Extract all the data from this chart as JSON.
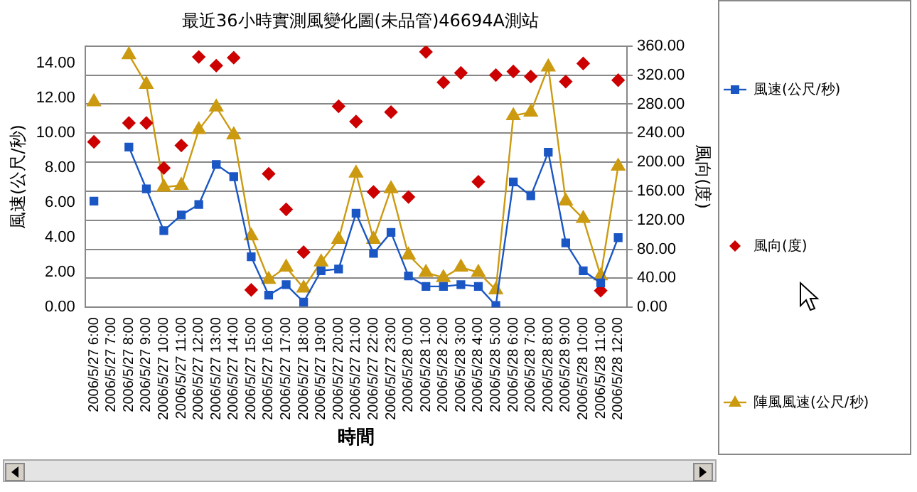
{
  "chart_data": {
    "type": "line",
    "title": "最近36小時實測風變化圖(未品管)46694A測站",
    "xlabel": "時間",
    "ylabel": "風速(公尺/秒)",
    "y2label": "風向(度)",
    "categories": [
      "2006/5/27 6:00",
      "2006/5/27 7:00",
      "2006/5/27 8:00",
      "2006/5/27 9:00",
      "2006/5/27 10:00",
      "2006/5/27 11:00",
      "2006/5/27 12:00",
      "2006/5/27 13:00",
      "2006/5/27 14:00",
      "2006/5/27 15:00",
      "2006/5/27 16:00",
      "2006/5/27 17:00",
      "2006/5/27 18:00",
      "2006/5/27 19:00",
      "2006/5/27 20:00",
      "2006/5/27 21:00",
      "2006/5/27 22:00",
      "2006/5/27 23:00",
      "2006/5/28 0:00",
      "2006/5/28 1:00",
      "2006/5/28 2:00",
      "2006/5/28 3:00",
      "2006/5/28 4:00",
      "2006/5/28 5:00",
      "2006/5/28 6:00",
      "2006/5/28 7:00",
      "2006/5/28 8:00",
      "2006/5/28 9:00",
      "2006/5/28 10:00",
      "2006/5/28 11:00",
      "2006/5/28 12:00"
    ],
    "series": [
      {
        "name": "風速(公尺/秒)",
        "type": "line",
        "marker": "square",
        "color": "#1a56c4",
        "values": [
          6.1,
          null,
          9.2,
          6.8,
          4.4,
          5.3,
          5.9,
          8.2,
          7.5,
          2.9,
          0.7,
          1.3,
          0.3,
          2.1,
          2.2,
          5.4,
          3.1,
          4.3,
          1.8,
          1.2,
          1.2,
          1.3,
          1.2,
          0.1,
          7.2,
          6.4,
          8.9,
          3.7,
          2.1,
          1.4,
          4.0
        ]
      },
      {
        "name": "風向(度)",
        "type": "scatter",
        "marker": "diamond",
        "axis": "y2",
        "color": "#cc0000",
        "values": [
          228,
          null,
          254,
          254,
          192,
          223,
          345,
          333,
          344,
          24,
          184,
          135,
          76,
          null,
          277,
          256,
          159,
          269,
          152,
          352,
          310,
          323,
          173,
          320,
          325,
          318,
          null,
          311,
          336,
          23,
          313
        ]
      },
      {
        "name": "陣風風速(公尺/秒)",
        "type": "line",
        "marker": "triangle",
        "color": "#cc9a10",
        "values": [
          11.8,
          null,
          14.5,
          12.8,
          6.9,
          7.0,
          10.2,
          11.5,
          9.9,
          4.1,
          1.6,
          2.3,
          1.1,
          2.6,
          3.9,
          7.7,
          3.9,
          6.8,
          3.0,
          2.0,
          1.7,
          2.3,
          2.0,
          1.0,
          11.0,
          11.2,
          13.8,
          6.1,
          5.1,
          1.8,
          8.1
        ]
      }
    ],
    "ylim": [
      0,
      15
    ],
    "yticks": [
      {
        "value": 0,
        "label": "0.00"
      },
      {
        "value": 2,
        "label": "2.00"
      },
      {
        "value": 4,
        "label": "4.00"
      },
      {
        "value": 6,
        "label": "6.00"
      },
      {
        "value": 8,
        "label": "8.00"
      },
      {
        "value": 10,
        "label": "10.00"
      },
      {
        "value": 12,
        "label": "12.00"
      },
      {
        "value": 14,
        "label": "14.00"
      }
    ],
    "y2lim": [
      0,
      360
    ],
    "y2ticks": [
      {
        "value": 0,
        "label": "0.00"
      },
      {
        "value": 40,
        "label": "40.00"
      },
      {
        "value": 80,
        "label": "80.00"
      },
      {
        "value": 120,
        "label": "120.00"
      },
      {
        "value": 160,
        "label": "160.00"
      },
      {
        "value": 200,
        "label": "200.00"
      },
      {
        "value": 240,
        "label": "240.00"
      },
      {
        "value": 280,
        "label": "280.00"
      },
      {
        "value": 320,
        "label": "320.00"
      },
      {
        "value": 360,
        "label": "360.00"
      }
    ],
    "grid": "y",
    "legend": "right"
  }
}
